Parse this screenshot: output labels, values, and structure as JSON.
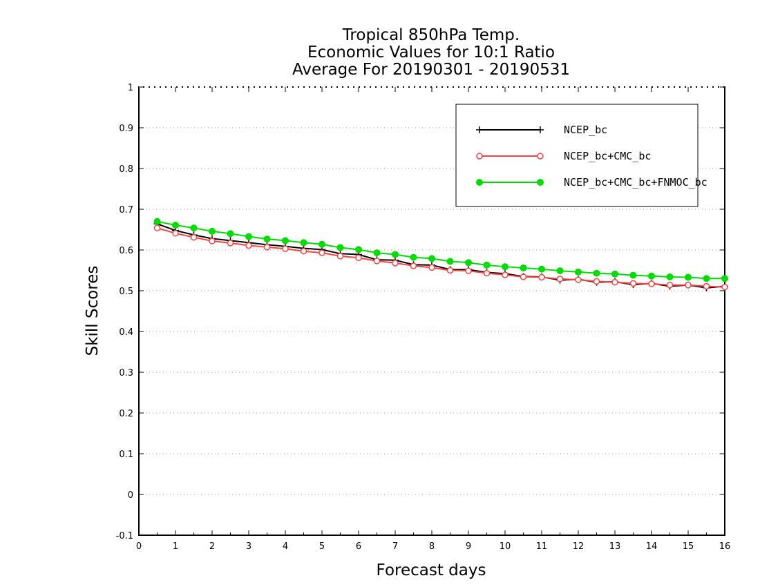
{
  "chart_data": {
    "type": "line",
    "title": [
      "Tropical 850hPa Temp.",
      "Economic Values for 10:1 Ratio",
      "Average For 20190301 - 20190531"
    ],
    "xlabel": "Forecast days",
    "ylabel": "Skill Scores",
    "xlim": [
      0,
      16
    ],
    "ylim": [
      -0.1,
      1
    ],
    "xticks": [
      "0",
      "1",
      "2",
      "3",
      "4",
      "5",
      "6",
      "7",
      "8",
      "9",
      "10",
      "11",
      "12",
      "13",
      "14",
      "15",
      "16"
    ],
    "yticks": [
      "-0.1",
      "0",
      "0.1",
      "0.2",
      "0.3",
      "0.4",
      "0.5",
      "0.6",
      "0.7",
      "0.8",
      "0.9",
      "1"
    ],
    "grid": "horizontal-dotted",
    "legend_position": "top-right",
    "x": [
      0.5,
      1,
      1.5,
      2,
      2.5,
      3,
      3.5,
      4,
      4.5,
      5,
      5.5,
      6,
      6.5,
      7,
      7.5,
      8,
      8.5,
      9,
      9.5,
      10,
      10.5,
      11,
      11.5,
      12,
      12.5,
      13,
      13.5,
      14,
      14.5,
      15,
      15.5,
      16
    ],
    "series": [
      {
        "name": "NCEP_bc",
        "color": "#000000",
        "marker": "plus",
        "values": [
          0.664,
          0.648,
          0.637,
          0.628,
          0.623,
          0.618,
          0.613,
          0.609,
          0.604,
          0.601,
          0.591,
          0.589,
          0.576,
          0.575,
          0.564,
          0.563,
          0.552,
          0.552,
          0.545,
          0.542,
          0.535,
          0.534,
          0.526,
          0.528,
          0.521,
          0.522,
          0.515,
          0.518,
          0.511,
          0.514,
          0.507,
          0.511
        ]
      },
      {
        "name": "NCEP_bc+CMC_bc",
        "color": "#ff4040",
        "marker": "open-circle",
        "values": [
          0.654,
          0.641,
          0.631,
          0.622,
          0.617,
          0.611,
          0.607,
          0.603,
          0.597,
          0.593,
          0.585,
          0.581,
          0.573,
          0.568,
          0.561,
          0.557,
          0.55,
          0.549,
          0.543,
          0.539,
          0.534,
          0.533,
          0.529,
          0.527,
          0.523,
          0.521,
          0.518,
          0.517,
          0.514,
          0.514,
          0.511,
          0.509
        ]
      },
      {
        "name": "NCEP_bc+CMC_bc+FNMOC_bc",
        "color": "#00dd00",
        "marker": "filled-circle",
        "values": [
          0.67,
          0.661,
          0.654,
          0.646,
          0.64,
          0.633,
          0.627,
          0.623,
          0.618,
          0.614,
          0.606,
          0.601,
          0.593,
          0.589,
          0.582,
          0.579,
          0.572,
          0.569,
          0.563,
          0.559,
          0.556,
          0.553,
          0.549,
          0.546,
          0.543,
          0.541,
          0.538,
          0.536,
          0.534,
          0.533,
          0.53,
          0.53
        ]
      }
    ]
  }
}
